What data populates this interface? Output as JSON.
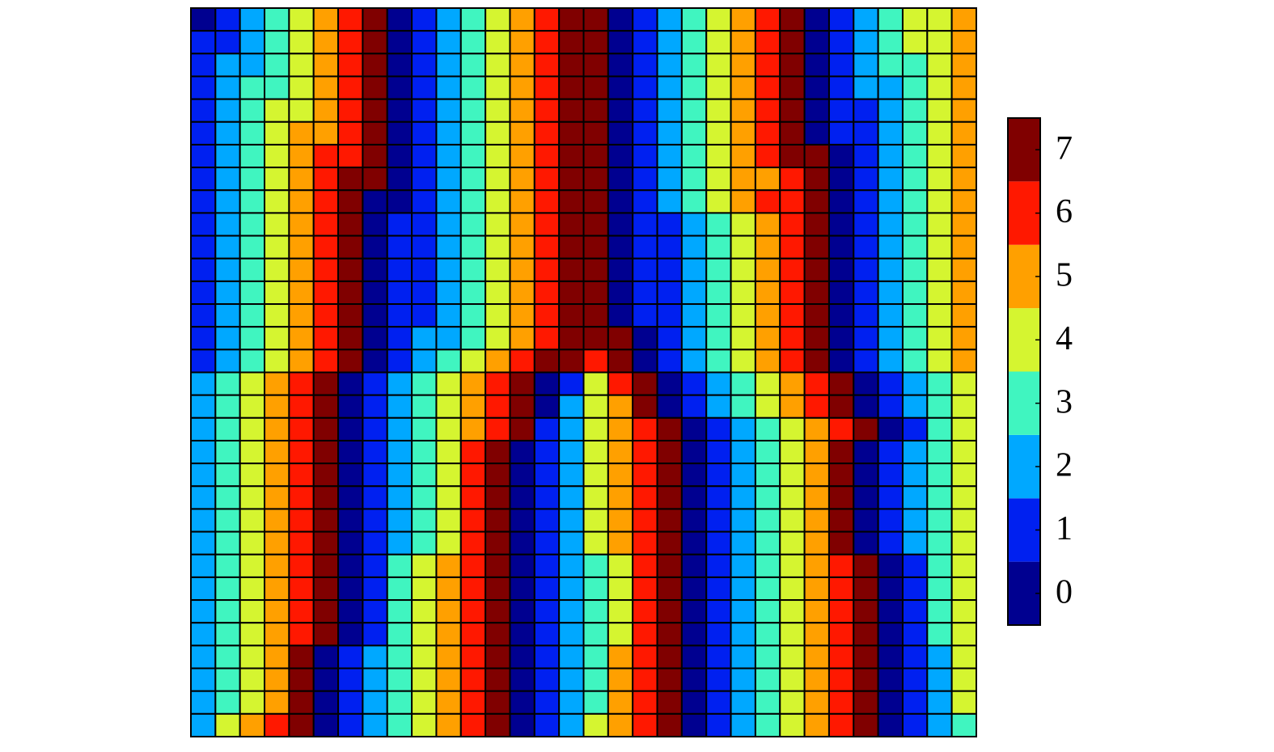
{
  "chart_data": {
    "type": "heatmap",
    "colors": [
      "#000090",
      "#0020f0",
      "#00a8ff",
      "#40f5c0",
      "#d5f530",
      "#ffa000",
      "#ff1800",
      "#800000"
    ],
    "colorbar": {
      "lim": [
        -0.5,
        7.5
      ],
      "ticks": [
        0,
        1,
        2,
        3,
        4,
        5,
        6,
        7
      ]
    },
    "values": [
      [
        0,
        1,
        2,
        3,
        4,
        5,
        6,
        7,
        0,
        1,
        2,
        3,
        4,
        5,
        6,
        7,
        7,
        0,
        1,
        2,
        3,
        4,
        5,
        6,
        7,
        0,
        1,
        2,
        3,
        4,
        4,
        5
      ],
      [
        1,
        1,
        2,
        3,
        4,
        5,
        6,
        7,
        0,
        1,
        2,
        3,
        4,
        5,
        6,
        7,
        7,
        0,
        1,
        2,
        3,
        4,
        5,
        6,
        7,
        0,
        1,
        2,
        3,
        4,
        4,
        5
      ],
      [
        1,
        2,
        2,
        3,
        4,
        5,
        6,
        7,
        0,
        1,
        2,
        3,
        4,
        5,
        6,
        7,
        7,
        0,
        1,
        2,
        3,
        4,
        5,
        6,
        7,
        0,
        1,
        2,
        3,
        3,
        4,
        5
      ],
      [
        1,
        2,
        3,
        3,
        4,
        5,
        6,
        7,
        0,
        1,
        2,
        3,
        4,
        5,
        6,
        7,
        7,
        0,
        1,
        2,
        3,
        4,
        5,
        6,
        7,
        0,
        1,
        2,
        2,
        3,
        4,
        5
      ],
      [
        1,
        2,
        3,
        4,
        4,
        5,
        6,
        7,
        0,
        1,
        2,
        3,
        4,
        5,
        6,
        7,
        7,
        0,
        1,
        2,
        3,
        4,
        5,
        6,
        7,
        0,
        1,
        1,
        2,
        3,
        4,
        5
      ],
      [
        1,
        2,
        3,
        4,
        5,
        5,
        6,
        7,
        0,
        1,
        2,
        3,
        4,
        5,
        6,
        7,
        7,
        0,
        1,
        2,
        3,
        4,
        5,
        6,
        7,
        0,
        1,
        1,
        2,
        3,
        4,
        5
      ],
      [
        1,
        2,
        3,
        4,
        5,
        6,
        6,
        7,
        0,
        1,
        2,
        3,
        4,
        5,
        6,
        7,
        7,
        0,
        1,
        2,
        3,
        4,
        5,
        6,
        7,
        7,
        0,
        1,
        2,
        3,
        4,
        5
      ],
      [
        1,
        2,
        3,
        4,
        5,
        6,
        7,
        7,
        0,
        1,
        2,
        3,
        4,
        5,
        6,
        7,
        7,
        0,
        1,
        2,
        3,
        4,
        5,
        5,
        6,
        7,
        0,
        1,
        2,
        3,
        4,
        5
      ],
      [
        1,
        2,
        3,
        4,
        5,
        6,
        7,
        0,
        0,
        1,
        2,
        3,
        4,
        5,
        6,
        7,
        7,
        0,
        1,
        2,
        3,
        4,
        5,
        6,
        6,
        7,
        0,
        1,
        2,
        3,
        4,
        5
      ],
      [
        1,
        2,
        3,
        4,
        5,
        6,
        7,
        0,
        1,
        1,
        2,
        3,
        4,
        5,
        6,
        7,
        7,
        0,
        1,
        1,
        2,
        3,
        4,
        5,
        6,
        7,
        0,
        1,
        2,
        3,
        4,
        5
      ],
      [
        1,
        2,
        3,
        4,
        5,
        6,
        7,
        0,
        1,
        1,
        2,
        3,
        4,
        5,
        6,
        7,
        7,
        0,
        1,
        1,
        2,
        3,
        4,
        5,
        6,
        7,
        0,
        1,
        2,
        3,
        4,
        5
      ],
      [
        1,
        2,
        3,
        4,
        5,
        6,
        7,
        0,
        1,
        1,
        2,
        3,
        4,
        5,
        6,
        7,
        7,
        0,
        1,
        1,
        2,
        3,
        4,
        5,
        6,
        7,
        0,
        1,
        2,
        3,
        4,
        5
      ],
      [
        1,
        2,
        3,
        4,
        5,
        6,
        7,
        0,
        1,
        1,
        2,
        3,
        4,
        5,
        6,
        7,
        7,
        0,
        1,
        1,
        2,
        3,
        4,
        5,
        6,
        7,
        0,
        1,
        2,
        3,
        4,
        5
      ],
      [
        1,
        2,
        3,
        4,
        5,
        6,
        7,
        0,
        1,
        1,
        2,
        3,
        4,
        5,
        6,
        7,
        7,
        0,
        1,
        1,
        2,
        3,
        4,
        5,
        6,
        7,
        0,
        1,
        2,
        3,
        4,
        5
      ],
      [
        1,
        2,
        3,
        4,
        5,
        6,
        7,
        0,
        1,
        2,
        2,
        3,
        4,
        5,
        6,
        7,
        7,
        7,
        0,
        1,
        2,
        3,
        4,
        5,
        6,
        7,
        0,
        1,
        2,
        3,
        4,
        5
      ],
      [
        1,
        2,
        3,
        4,
        5,
        6,
        7,
        0,
        1,
        2,
        3,
        4,
        5,
        6,
        7,
        7,
        6,
        7,
        0,
        1,
        2,
        3,
        4,
        5,
        6,
        7,
        0,
        1,
        2,
        3,
        4,
        5
      ],
      [
        2,
        3,
        4,
        5,
        6,
        7,
        0,
        1,
        2,
        3,
        4,
        5,
        6,
        7,
        0,
        1,
        4,
        6,
        7,
        0,
        1,
        2,
        3,
        4,
        5,
        6,
        7,
        0,
        1,
        2,
        3,
        4
      ],
      [
        2,
        3,
        4,
        5,
        6,
        7,
        0,
        1,
        2,
        3,
        4,
        5,
        6,
        7,
        0,
        2,
        4,
        5,
        7,
        0,
        1,
        2,
        3,
        4,
        5,
        6,
        7,
        0,
        1,
        2,
        3,
        4
      ],
      [
        2,
        3,
        4,
        5,
        6,
        7,
        0,
        1,
        2,
        3,
        4,
        5,
        6,
        7,
        1,
        2,
        4,
        5,
        6,
        7,
        0,
        1,
        2,
        3,
        4,
        5,
        6,
        7,
        0,
        1,
        3,
        4
      ],
      [
        2,
        3,
        4,
        5,
        6,
        7,
        0,
        1,
        2,
        3,
        4,
        6,
        7,
        0,
        1,
        2,
        4,
        5,
        6,
        7,
        0,
        1,
        2,
        3,
        4,
        5,
        7,
        0,
        1,
        2,
        3,
        4
      ],
      [
        2,
        3,
        4,
        5,
        6,
        7,
        0,
        1,
        2,
        3,
        4,
        6,
        7,
        0,
        1,
        2,
        4,
        5,
        6,
        7,
        0,
        1,
        2,
        3,
        4,
        5,
        7,
        0,
        1,
        2,
        3,
        4
      ],
      [
        2,
        3,
        4,
        5,
        6,
        7,
        0,
        1,
        2,
        3,
        4,
        6,
        7,
        0,
        1,
        2,
        4,
        5,
        6,
        7,
        0,
        1,
        2,
        3,
        4,
        5,
        7,
        0,
        1,
        2,
        3,
        4
      ],
      [
        2,
        3,
        4,
        5,
        6,
        7,
        0,
        1,
        2,
        3,
        4,
        6,
        7,
        0,
        1,
        2,
        4,
        5,
        6,
        7,
        0,
        1,
        2,
        3,
        4,
        5,
        7,
        0,
        1,
        2,
        3,
        4
      ],
      [
        2,
        3,
        4,
        5,
        6,
        7,
        0,
        1,
        2,
        3,
        4,
        6,
        7,
        0,
        1,
        2,
        4,
        5,
        6,
        7,
        0,
        1,
        2,
        3,
        4,
        5,
        7,
        0,
        1,
        2,
        3,
        4
      ],
      [
        2,
        3,
        4,
        5,
        6,
        7,
        0,
        1,
        3,
        4,
        5,
        6,
        7,
        0,
        1,
        2,
        3,
        4,
        6,
        7,
        0,
        1,
        2,
        3,
        4,
        5,
        6,
        7,
        0,
        1,
        3,
        4
      ],
      [
        2,
        3,
        4,
        5,
        6,
        7,
        0,
        1,
        3,
        4,
        5,
        6,
        7,
        0,
        1,
        2,
        3,
        4,
        6,
        7,
        0,
        1,
        2,
        3,
        4,
        5,
        6,
        7,
        0,
        1,
        3,
        4
      ],
      [
        2,
        3,
        4,
        5,
        6,
        7,
        0,
        1,
        3,
        4,
        5,
        6,
        7,
        0,
        1,
        2,
        3,
        4,
        6,
        7,
        0,
        1,
        2,
        3,
        4,
        5,
        6,
        7,
        0,
        1,
        3,
        4
      ],
      [
        2,
        3,
        4,
        5,
        6,
        7,
        0,
        1,
        3,
        4,
        5,
        6,
        7,
        0,
        1,
        2,
        3,
        4,
        6,
        7,
        0,
        1,
        2,
        3,
        4,
        5,
        6,
        7,
        0,
        1,
        3,
        4
      ],
      [
        2,
        3,
        4,
        5,
        7,
        0,
        1,
        2,
        3,
        4,
        5,
        6,
        7,
        0,
        1,
        2,
        3,
        5,
        6,
        7,
        0,
        1,
        2,
        3,
        4,
        5,
        6,
        7,
        0,
        1,
        2,
        4
      ],
      [
        2,
        3,
        4,
        5,
        7,
        0,
        1,
        2,
        3,
        4,
        5,
        6,
        7,
        0,
        1,
        2,
        3,
        5,
        6,
        7,
        0,
        1,
        2,
        3,
        4,
        5,
        6,
        7,
        0,
        1,
        2,
        4
      ],
      [
        2,
        3,
        4,
        5,
        7,
        0,
        1,
        2,
        3,
        4,
        5,
        6,
        7,
        0,
        1,
        2,
        3,
        5,
        6,
        7,
        0,
        1,
        2,
        3,
        4,
        5,
        6,
        7,
        0,
        1,
        2,
        4
      ],
      [
        2,
        4,
        5,
        6,
        7,
        0,
        1,
        2,
        3,
        4,
        5,
        6,
        7,
        0,
        1,
        2,
        4,
        5,
        6,
        7,
        0,
        1,
        2,
        3,
        4,
        5,
        6,
        7,
        0,
        1,
        2,
        3
      ]
    ]
  }
}
